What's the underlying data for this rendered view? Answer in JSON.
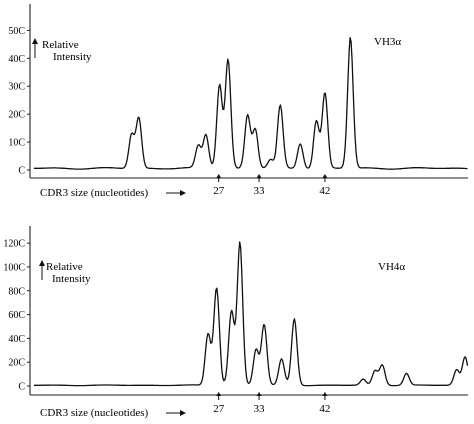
{
  "chart_data": [
    {
      "type": "line",
      "series": [
        {
          "name": "VH3α",
          "values_description_free": true
        }
      ],
      "ylabel": "Relative Intensity",
      "xlabel": "CDR3 size (nucleotides)",
      "ytick_labels": [
        "C",
        "10C",
        "20C",
        "30C",
        "40C",
        "50C"
      ],
      "ytick_values": [
        0,
        100,
        200,
        300,
        400,
        500
      ],
      "xmarks": [
        "27",
        "33",
        "42"
      ],
      "ylim": [
        0,
        530
      ],
      "peaks": [
        {
          "pos": 0.225,
          "value": 120
        },
        {
          "pos": 0.242,
          "value": 180
        },
        {
          "pos": 0.382,
          "value": 80
        },
        {
          "pos": 0.4,
          "value": 120
        },
        {
          "pos": 0.432,
          "value": 300
        },
        {
          "pos": 0.452,
          "value": 390
        },
        {
          "pos": 0.498,
          "value": 190
        },
        {
          "pos": 0.516,
          "value": 140
        },
        {
          "pos": 0.552,
          "value": 30
        },
        {
          "pos": 0.575,
          "value": 225
        },
        {
          "pos": 0.622,
          "value": 90
        },
        {
          "pos": 0.66,
          "value": 170
        },
        {
          "pos": 0.68,
          "value": 270
        },
        {
          "pos": 0.74,
          "value": 470
        }
      ]
    },
    {
      "type": "line",
      "series": [
        {
          "name": "VH4α"
        }
      ],
      "ylabel": "Relative Intensity",
      "xlabel": "CDR3 size (nucleotides)",
      "ytick_labels": [
        "C",
        "20C",
        "40C",
        "60C",
        "80C",
        "100C",
        "120C"
      ],
      "ytick_values": [
        0,
        200,
        400,
        600,
        800,
        1000,
        1200
      ],
      "xmarks": [
        "27",
        "33",
        "42"
      ],
      "ylim": [
        0,
        1260
      ],
      "peaks": [
        {
          "pos": 0.405,
          "value": 430
        },
        {
          "pos": 0.425,
          "value": 820
        },
        {
          "pos": 0.46,
          "value": 620
        },
        {
          "pos": 0.48,
          "value": 1200
        },
        {
          "pos": 0.518,
          "value": 300
        },
        {
          "pos": 0.537,
          "value": 510
        },
        {
          "pos": 0.578,
          "value": 220
        },
        {
          "pos": 0.608,
          "value": 560
        },
        {
          "pos": 0.77,
          "value": 50
        },
        {
          "pos": 0.798,
          "value": 120
        },
        {
          "pos": 0.815,
          "value": 170
        },
        {
          "pos": 0.872,
          "value": 100
        },
        {
          "pos": 0.99,
          "value": 130
        },
        {
          "pos": 1.01,
          "value": 240
        }
      ]
    }
  ],
  "panels": [
    {
      "tag": "VH3α",
      "rel": "Relative",
      "intensity": "Intensity",
      "xlabel": "CDR3 size (nucleotides)",
      "marks": [
        "27",
        "33",
        "42"
      ]
    },
    {
      "tag": "VH4α",
      "rel": "Relative",
      "intensity": "Intensity",
      "xlabel": "CDR3 size (nucleotides)",
      "marks": [
        "27",
        "33",
        "42"
      ]
    }
  ]
}
